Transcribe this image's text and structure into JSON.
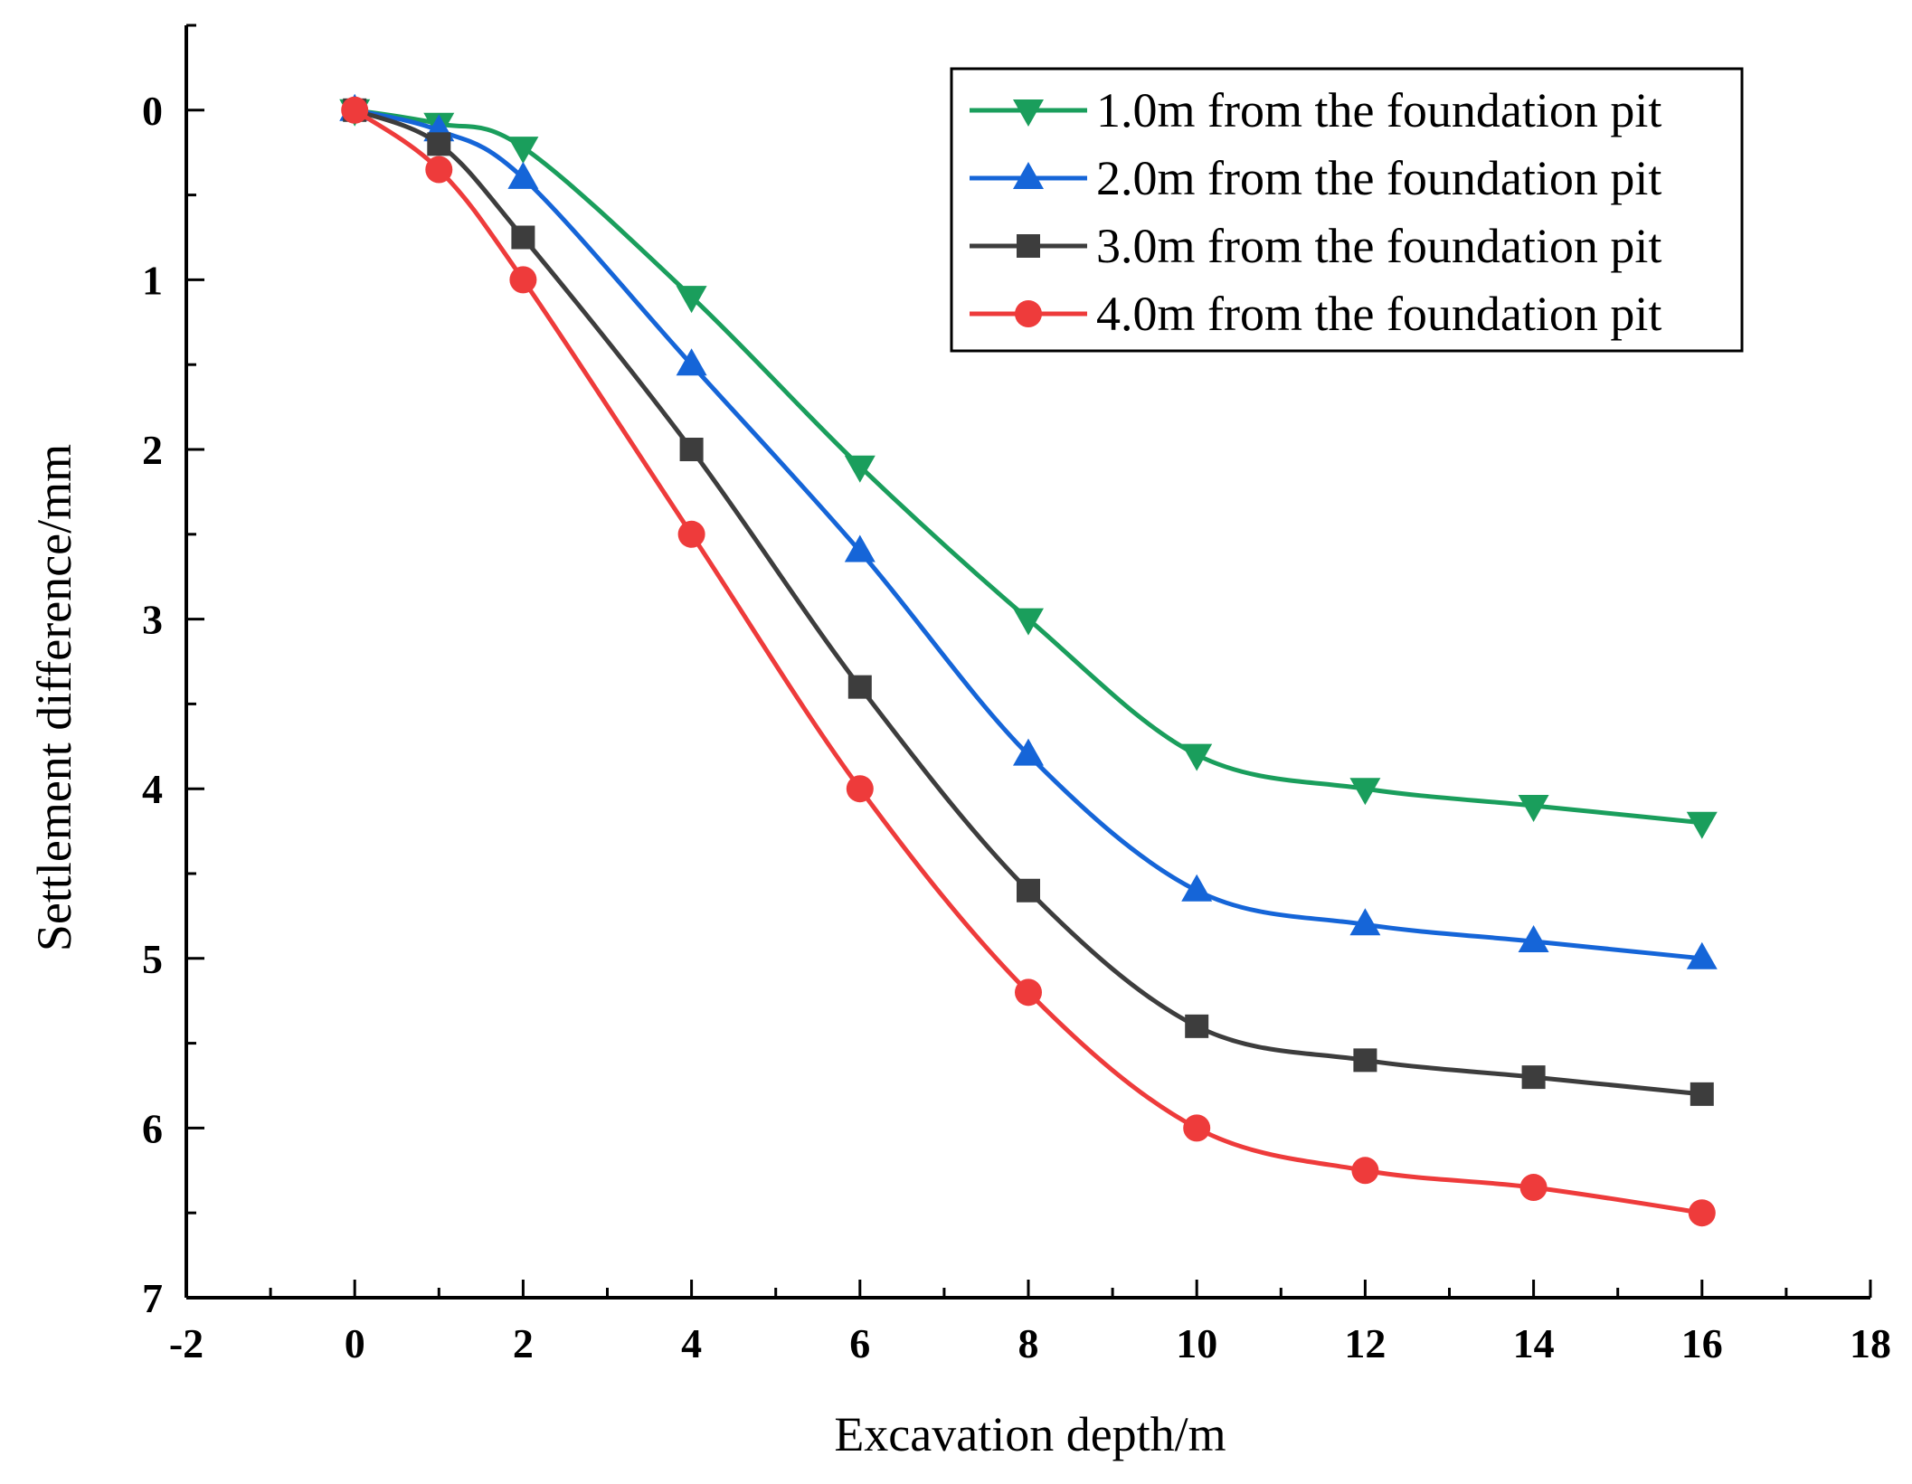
{
  "chart_data": {
    "type": "line",
    "title": "",
    "xlabel": "Excavation depth/m",
    "ylabel": "Settlement difference/mm",
    "xlim": [
      -2,
      18
    ],
    "ylim": [
      -0.5,
      7
    ],
    "y_inverted": true,
    "xticks": [
      -2,
      0,
      2,
      4,
      6,
      8,
      10,
      12,
      14,
      16,
      18
    ],
    "yticks": [
      0,
      1,
      2,
      3,
      4,
      5,
      6,
      7
    ],
    "xtick_labels": [
      "-2",
      "0",
      "2",
      "4",
      "6",
      "8",
      "10",
      "12",
      "14",
      "16",
      "18"
    ],
    "ytick_labels": [
      "0",
      "1",
      "2",
      "3",
      "4",
      "5",
      "6",
      "7"
    ],
    "legend_position": "top-right",
    "grid": false,
    "x": [
      0,
      1,
      2,
      4,
      6,
      8,
      10,
      12,
      14,
      16
    ],
    "series": [
      {
        "name": "1.0m from the foundation pit",
        "color": "#1a9e5c",
        "marker": "triangle-down",
        "values": [
          0,
          0.08,
          0.22,
          1.1,
          2.1,
          3.0,
          3.8,
          4.0,
          4.1,
          4.2
        ]
      },
      {
        "name": "2.0m from the foundation pit",
        "color": "#1565d8",
        "marker": "triangle-up",
        "values": [
          0,
          0.12,
          0.4,
          1.5,
          2.6,
          3.8,
          4.6,
          4.8,
          4.9,
          5.0
        ]
      },
      {
        "name": "3.0m from the foundation pit",
        "color": "#3d3d3d",
        "marker": "square",
        "values": [
          0,
          0.2,
          0.75,
          2.0,
          3.4,
          4.6,
          5.4,
          5.6,
          5.7,
          5.8
        ]
      },
      {
        "name": "4.0m from the foundation pit",
        "color": "#ee3b3b",
        "marker": "circle",
        "values": [
          0,
          0.35,
          1.0,
          2.5,
          4.0,
          5.2,
          6.0,
          6.25,
          6.35,
          6.5
        ]
      }
    ]
  }
}
